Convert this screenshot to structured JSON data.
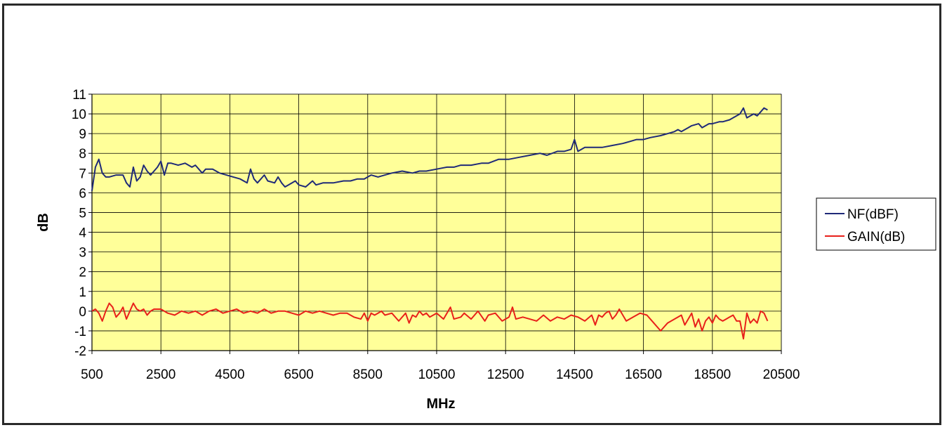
{
  "chart_data": {
    "type": "line",
    "title": "",
    "xlabel": "MHz",
    "ylabel": "dB",
    "xlim": [
      500,
      20500
    ],
    "ylim": [
      -2,
      11
    ],
    "xticks": [
      500,
      2500,
      4500,
      6500,
      8500,
      10500,
      12500,
      14500,
      16500,
      18500,
      20500
    ],
    "yticks": [
      -2,
      -1,
      0,
      1,
      2,
      3,
      4,
      5,
      6,
      7,
      8,
      9,
      10,
      11
    ],
    "grid": true,
    "legend_position": "right",
    "plot_background": "#FFFF99",
    "series": [
      {
        "name": "NF(dBF)",
        "color": "#1F2A78",
        "x": [
          500,
          600,
          700,
          800,
          900,
          1000,
          1200,
          1400,
          1500,
          1600,
          1700,
          1800,
          1900,
          2000,
          2100,
          2200,
          2300,
          2400,
          2500,
          2600,
          2700,
          2800,
          3000,
          3200,
          3400,
          3500,
          3700,
          3800,
          4000,
          4200,
          4400,
          4600,
          4800,
          5000,
          5100,
          5200,
          5300,
          5500,
          5600,
          5800,
          5900,
          6000,
          6100,
          6200,
          6400,
          6500,
          6700,
          6900,
          7000,
          7200,
          7500,
          7800,
          8000,
          8200,
          8400,
          8500,
          8600,
          8800,
          9000,
          9200,
          9500,
          9800,
          10000,
          10200,
          10500,
          10800,
          11000,
          11200,
          11500,
          11800,
          12000,
          12300,
          12600,
          12900,
          13200,
          13500,
          13700,
          14000,
          14200,
          14400,
          14500,
          14600,
          14800,
          15100,
          15300,
          15600,
          15900,
          16100,
          16300,
          16500,
          16700,
          17000,
          17200,
          17400,
          17500,
          17600,
          17800,
          17900,
          18100,
          18200,
          18400,
          18500,
          18700,
          18800,
          19000,
          19200,
          19300,
          19400,
          19500,
          19600,
          19700,
          19800,
          19900,
          20000,
          20100
        ],
        "values": [
          6.1,
          7.3,
          7.7,
          7.0,
          6.8,
          6.8,
          6.9,
          6.9,
          6.5,
          6.3,
          7.3,
          6.6,
          6.8,
          7.4,
          7.1,
          6.9,
          7.1,
          7.3,
          7.6,
          6.9,
          7.5,
          7.5,
          7.4,
          7.5,
          7.3,
          7.4,
          7.0,
          7.2,
          7.2,
          7.0,
          6.9,
          6.8,
          6.7,
          6.5,
          7.2,
          6.7,
          6.5,
          6.9,
          6.6,
          6.5,
          6.8,
          6.5,
          6.3,
          6.4,
          6.6,
          6.4,
          6.3,
          6.6,
          6.4,
          6.5,
          6.5,
          6.6,
          6.6,
          6.7,
          6.7,
          6.8,
          6.9,
          6.8,
          6.9,
          7.0,
          7.1,
          7.0,
          7.1,
          7.1,
          7.2,
          7.3,
          7.3,
          7.4,
          7.4,
          7.5,
          7.5,
          7.7,
          7.7,
          7.8,
          7.9,
          8.0,
          7.9,
          8.1,
          8.1,
          8.2,
          8.7,
          8.1,
          8.3,
          8.3,
          8.3,
          8.4,
          8.5,
          8.6,
          8.7,
          8.7,
          8.8,
          8.9,
          9.0,
          9.1,
          9.2,
          9.1,
          9.3,
          9.4,
          9.5,
          9.3,
          9.5,
          9.5,
          9.6,
          9.6,
          9.7,
          9.9,
          10.0,
          10.3,
          9.8,
          9.9,
          10.0,
          9.9,
          10.1,
          10.3,
          10.2
        ]
      },
      {
        "name": "GAIN(dB)",
        "color": "#E8201A",
        "x": [
          500,
          600,
          700,
          800,
          900,
          1000,
          1100,
          1200,
          1300,
          1400,
          1500,
          1600,
          1700,
          1800,
          1900,
          2000,
          2100,
          2200,
          2300,
          2500,
          2700,
          2900,
          3100,
          3300,
          3500,
          3700,
          3900,
          4100,
          4300,
          4500,
          4700,
          4900,
          5100,
          5300,
          5500,
          5700,
          5900,
          6100,
          6300,
          6500,
          6700,
          6900,
          7100,
          7300,
          7500,
          7700,
          7900,
          8100,
          8300,
          8400,
          8500,
          8600,
          8700,
          8800,
          8900,
          9000,
          9200,
          9400,
          9600,
          9700,
          9800,
          9900,
          10000,
          10100,
          10200,
          10300,
          10400,
          10500,
          10700,
          10900,
          11000,
          11200,
          11300,
          11500,
          11700,
          11900,
          12000,
          12200,
          12400,
          12600,
          12700,
          12800,
          13000,
          13200,
          13400,
          13600,
          13800,
          14000,
          14200,
          14400,
          14600,
          14800,
          15000,
          15100,
          15200,
          15300,
          15400,
          15500,
          15600,
          15700,
          15800,
          16000,
          16200,
          16400,
          16600,
          16800,
          17000,
          17200,
          17400,
          17600,
          17700,
          17800,
          17900,
          18000,
          18100,
          18200,
          18300,
          18400,
          18500,
          18600,
          18700,
          18800,
          18900,
          19000,
          19100,
          19200,
          19300,
          19400,
          19500,
          19600,
          19700,
          19800,
          19900,
          20000,
          20100
        ],
        "values": [
          0.0,
          0.1,
          -0.1,
          -0.5,
          0.0,
          0.4,
          0.2,
          -0.3,
          -0.1,
          0.2,
          -0.4,
          0.0,
          0.4,
          0.1,
          0.0,
          0.1,
          -0.2,
          0.0,
          0.1,
          0.1,
          -0.1,
          -0.2,
          0.0,
          -0.1,
          0.0,
          -0.2,
          0.0,
          0.1,
          -0.1,
          0.0,
          0.1,
          -0.1,
          0.0,
          -0.1,
          0.1,
          -0.1,
          0.0,
          0.0,
          -0.1,
          -0.2,
          0.0,
          -0.1,
          0.0,
          -0.1,
          -0.2,
          -0.1,
          -0.1,
          -0.3,
          -0.4,
          -0.1,
          -0.5,
          -0.1,
          -0.2,
          -0.1,
          0.0,
          -0.2,
          -0.1,
          -0.5,
          -0.1,
          -0.6,
          -0.2,
          -0.3,
          0.0,
          -0.2,
          -0.1,
          -0.3,
          -0.2,
          -0.1,
          -0.4,
          0.2,
          -0.4,
          -0.3,
          -0.1,
          -0.4,
          0.0,
          -0.5,
          -0.2,
          -0.1,
          -0.5,
          -0.3,
          0.2,
          -0.4,
          -0.3,
          -0.4,
          -0.5,
          -0.2,
          -0.5,
          -0.3,
          -0.4,
          -0.2,
          -0.3,
          -0.5,
          -0.2,
          -0.7,
          -0.2,
          -0.3,
          -0.1,
          0.0,
          -0.4,
          -0.2,
          0.1,
          -0.5,
          -0.3,
          -0.1,
          -0.2,
          -0.6,
          -1.0,
          -0.6,
          -0.4,
          -0.2,
          -0.7,
          -0.4,
          -0.1,
          -0.8,
          -0.4,
          -1.0,
          -0.5,
          -0.3,
          -0.6,
          -0.2,
          -0.4,
          -0.5,
          -0.4,
          -0.3,
          -0.2,
          -0.5,
          -0.5,
          -1.4,
          -0.1,
          -0.6,
          -0.4,
          -0.6,
          0.0,
          -0.1,
          -0.5
        ]
      }
    ]
  }
}
